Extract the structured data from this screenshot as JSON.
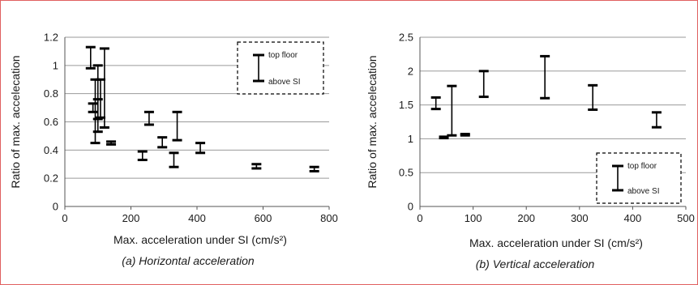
{
  "chart_data": [
    {
      "type": "errorbar",
      "caption": "(a) Horizontal acceleration",
      "xlabel": "Max. acceleration under SI (cm/s²)",
      "ylabel": "Ratio of max. accelecation",
      "xlim": [
        0,
        800
      ],
      "ylim": [
        0,
        1.2
      ],
      "xticks": [
        0,
        200,
        400,
        600,
        800
      ],
      "yticks": [
        0,
        0.2,
        0.4,
        0.6,
        0.8,
        1,
        1.2
      ],
      "xtick_labels": [
        "0",
        "200",
        "400",
        "600",
        "800"
      ],
      "ytick_labels": [
        "0",
        "0.2",
        "0.4",
        "0.6",
        "0.8",
        "1",
        "1.2"
      ],
      "grid": "horizontal",
      "legend": {
        "placement": "top-right",
        "top_label": "top floor",
        "bottom_label": "above SI"
      },
      "bars": [
        {
          "x": 78,
          "top": 1.13,
          "bottom": 0.98
        },
        {
          "x": 85,
          "top": 0.73,
          "bottom": 0.67
        },
        {
          "x": 92,
          "top": 0.9,
          "bottom": 0.45
        },
        {
          "x": 100,
          "top": 1.0,
          "bottom": 0.53
        },
        {
          "x": 100,
          "top": 0.76,
          "bottom": 0.62
        },
        {
          "x": 108,
          "top": 0.9,
          "bottom": 0.63
        },
        {
          "x": 120,
          "top": 1.12,
          "bottom": 0.56
        },
        {
          "x": 140,
          "top": 0.46,
          "bottom": 0.44
        },
        {
          "x": 235,
          "top": 0.39,
          "bottom": 0.33
        },
        {
          "x": 255,
          "top": 0.67,
          "bottom": 0.58
        },
        {
          "x": 295,
          "top": 0.49,
          "bottom": 0.42
        },
        {
          "x": 330,
          "top": 0.38,
          "bottom": 0.28
        },
        {
          "x": 340,
          "top": 0.67,
          "bottom": 0.47
        },
        {
          "x": 410,
          "top": 0.45,
          "bottom": 0.38
        },
        {
          "x": 580,
          "top": 0.3,
          "bottom": 0.27
        },
        {
          "x": 755,
          "top": 0.28,
          "bottom": 0.25
        }
      ]
    },
    {
      "type": "errorbar",
      "caption": "(b) Vertical acceleration",
      "xlabel": "Max. acceleration under SI (cm/s²)",
      "ylabel": "Ratio of max. accelecation",
      "xlim": [
        0,
        500
      ],
      "ylim": [
        0,
        2.5
      ],
      "xticks": [
        0,
        100,
        200,
        300,
        400,
        500
      ],
      "yticks": [
        0,
        0.5,
        1,
        1.5,
        2,
        2.5
      ],
      "xtick_labels": [
        "0",
        "100",
        "200",
        "300",
        "400",
        "500"
      ],
      "ytick_labels": [
        "0",
        "0.5",
        "1",
        "1.5",
        "2",
        "2.5"
      ],
      "grid": "horizontal",
      "legend": {
        "placement": "bottom-right",
        "top_label": "top floor",
        "bottom_label": "above SI"
      },
      "bars": [
        {
          "x": 30,
          "top": 1.61,
          "bottom": 1.44
        },
        {
          "x": 45,
          "top": 1.03,
          "bottom": 1.01
        },
        {
          "x": 60,
          "top": 1.78,
          "bottom": 1.05
        },
        {
          "x": 85,
          "top": 1.07,
          "bottom": 1.05
        },
        {
          "x": 120,
          "top": 2.0,
          "bottom": 1.62
        },
        {
          "x": 235,
          "top": 2.22,
          "bottom": 1.6
        },
        {
          "x": 325,
          "top": 1.79,
          "bottom": 1.43
        },
        {
          "x": 445,
          "top": 1.39,
          "bottom": 1.17
        }
      ]
    }
  ]
}
